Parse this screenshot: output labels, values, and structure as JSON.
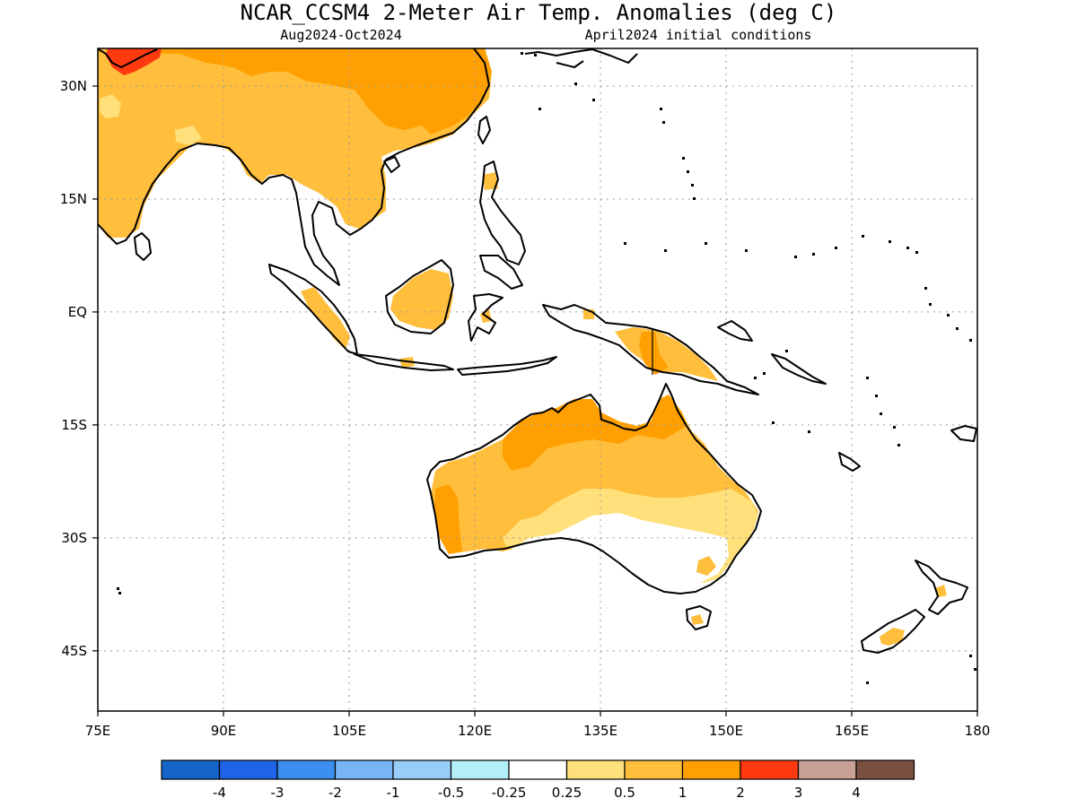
{
  "title": "NCAR_CCSM4 2-Meter Air Temp. Anomalies (deg C)",
  "subtitle_left": "Aug2024-Oct2024",
  "subtitle_right": "April2024 initial conditions",
  "map": {
    "lon_range": [
      75,
      180
    ],
    "lat_range": [
      -53,
      35
    ],
    "lon_ticks": [
      {
        "value": 75,
        "label": "75E"
      },
      {
        "value": 90,
        "label": "90E"
      },
      {
        "value": 105,
        "label": "105E"
      },
      {
        "value": 120,
        "label": "120E"
      },
      {
        "value": 135,
        "label": "135E"
      },
      {
        "value": 150,
        "label": "150E"
      },
      {
        "value": 165,
        "label": "165E"
      },
      {
        "value": 180,
        "label": "180"
      }
    ],
    "lat_ticks": [
      {
        "value": 30,
        "label": "30N"
      },
      {
        "value": 15,
        "label": "15N"
      },
      {
        "value": 0,
        "label": "EQ"
      },
      {
        "value": -15,
        "label": "15S"
      },
      {
        "value": -30,
        "label": "30S"
      },
      {
        "value": -45,
        "label": "45S"
      }
    ]
  },
  "legend": {
    "colors": [
      "#1565c8",
      "#1f64e6",
      "#3c8ff0",
      "#78b5f5",
      "#97cdf7",
      "#b3eff9",
      "#ffffff",
      "#ffe07a",
      "#ffbe3c",
      "#ffa000",
      "#ff3a10",
      "#c8a096",
      "#7a5040"
    ],
    "labels": [
      "-4",
      "-3",
      "-2",
      "-1",
      "-0.5",
      "-0.25",
      "0.25",
      "0.5",
      "1",
      "2",
      "3",
      "4"
    ]
  },
  "colors": {
    "cat_0_5": "#ffe07a",
    "cat_1": "#ffbe3c",
    "cat_2": "#ffa000",
    "cat_3": "#ff3a10"
  }
}
